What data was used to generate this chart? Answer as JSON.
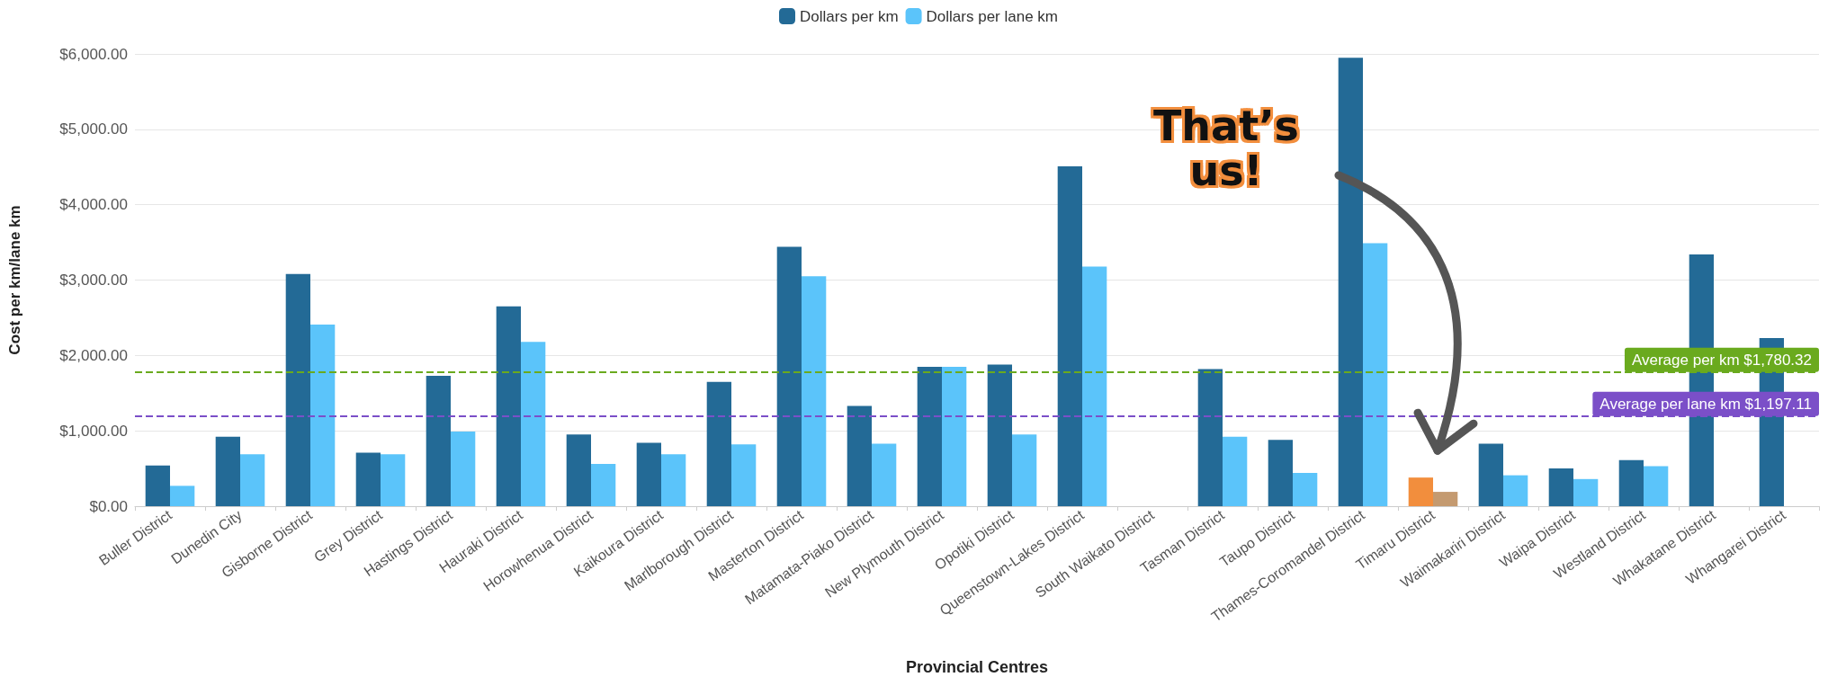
{
  "chart_data": {
    "type": "bar",
    "xlabel": "Provincial Centres",
    "ylabel": "Cost per km/lane km",
    "categories": [
      "Buller District",
      "Dunedin City",
      "Gisborne District",
      "Grey District",
      "Hastings District",
      "Hauraki District",
      "Horowhenua District",
      "Kaikoura District",
      "Marlborough District",
      "Masterton District",
      "Matamata-Piako District",
      "New Plymouth District",
      "Opotiki District",
      "Queenstown-Lakes District",
      "South Waikato District",
      "Tasman District",
      "Taupo District",
      "Thames-Coromandel District",
      "Timaru District",
      "Waimakariri District",
      "Waipa District",
      "Westland District",
      "Whakatane District",
      "Whangarei District"
    ],
    "series": [
      {
        "name": "Dollars per km",
        "color": "#236a96",
        "colors": [
          "#236a96",
          "#236a96",
          "#236a96",
          "#236a96",
          "#236a96",
          "#236a96",
          "#236a96",
          "#236a96",
          "#236a96",
          "#236a96",
          "#236a96",
          "#236a96",
          "#236a96",
          "#236a96",
          "#236a96",
          "#236a96",
          "#236a96",
          "#236a96",
          "#f28e3d",
          "#236a96",
          "#236a96",
          "#236a96",
          "#236a96",
          "#236a96"
        ],
        "values": [
          540,
          920,
          3080,
          710,
          1730,
          2650,
          950,
          840,
          1650,
          3440,
          1330,
          1850,
          1880,
          4510,
          null,
          1820,
          880,
          5950,
          380,
          830,
          500,
          610,
          3340,
          2230
        ]
      },
      {
        "name": "Dollars per lane km",
        "color": "#5bc4fa",
        "colors": [
          "#5bc4fa",
          "#5bc4fa",
          "#5bc4fa",
          "#5bc4fa",
          "#5bc4fa",
          "#5bc4fa",
          "#5bc4fa",
          "#5bc4fa",
          "#5bc4fa",
          "#5bc4fa",
          "#5bc4fa",
          "#5bc4fa",
          "#5bc4fa",
          "#5bc4fa",
          "#5bc4fa",
          "#5bc4fa",
          "#5bc4fa",
          "#5bc4fa",
          "#c49a70",
          "#5bc4fa",
          "#5bc4fa",
          "#5bc4fa",
          "#5bc4fa",
          "#5bc4fa"
        ],
        "values": [
          270,
          690,
          2410,
          690,
          990,
          2180,
          560,
          690,
          820,
          3050,
          830,
          1850,
          950,
          3180,
          null,
          920,
          440,
          3490,
          190,
          410,
          360,
          530,
          null,
          null
        ]
      }
    ],
    "ylim": [
      0,
      6000
    ],
    "yticks": [
      {
        "value": 0,
        "label": "$0.00"
      },
      {
        "value": 1000,
        "label": "$1,000.00"
      },
      {
        "value": 2000,
        "label": "$2,000.00"
      },
      {
        "value": 3000,
        "label": "$3,000.00"
      },
      {
        "value": 4000,
        "label": "$4,000.00"
      },
      {
        "value": 5000,
        "label": "$5,000.00"
      },
      {
        "value": 6000,
        "label": "$6,000.00"
      }
    ],
    "grid": "y",
    "legend": "top",
    "ref_lines": [
      {
        "axis": "y",
        "value": 1780.32,
        "label": "Average per km $1,780.32",
        "color": "#6aaa1e",
        "line_style": "dashed"
      },
      {
        "axis": "y",
        "value": 1197.11,
        "label": "Average per lane km $1,197.11",
        "color": "#7b4fc8",
        "line_style": "dashed"
      }
    ],
    "annotations": [
      "That’s us!"
    ]
  }
}
